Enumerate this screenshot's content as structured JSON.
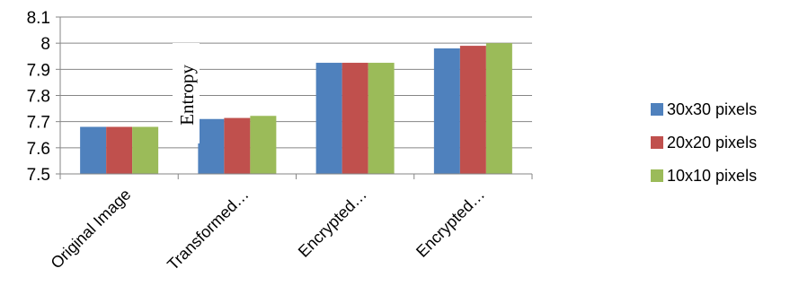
{
  "chart_data": {
    "type": "bar",
    "categories": [
      "Original Image",
      "Transformed…",
      "Encrypted…",
      "Encrypted…"
    ],
    "series": [
      {
        "name": "30x30 pixels",
        "values": [
          7.68,
          7.71,
          7.925,
          7.98
        ],
        "color": "#4f81bd"
      },
      {
        "name": "20x20 pixels",
        "values": [
          7.68,
          7.714,
          7.925,
          7.99
        ],
        "color": "#c0504d"
      },
      {
        "name": "10x10 pixels",
        "values": [
          7.68,
          7.722,
          7.925,
          8.0
        ],
        "color": "#9bbb59"
      }
    ],
    "ylabel": "Entropy",
    "ylim": [
      7.5,
      8.1
    ],
    "yticks": [
      "7.5",
      "7.6",
      "7.7",
      "7.8",
      "7.9",
      "8",
      "8.1"
    ],
    "grid": true,
    "legend_position": "right"
  }
}
